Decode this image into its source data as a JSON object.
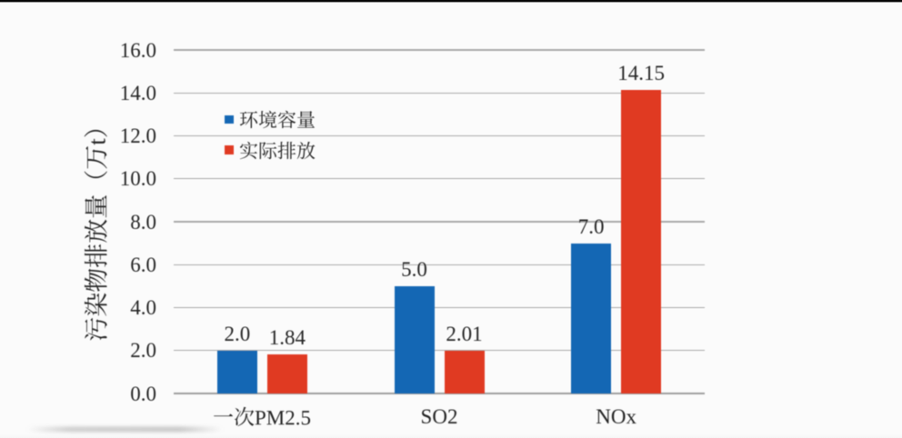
{
  "frame": {
    "background_color": "#fbfbfb",
    "letterbox_bar_color": "#000000"
  },
  "chart_data": {
    "type": "bar",
    "categories": [
      "一次PM2.5",
      "SO2",
      "NOx"
    ],
    "series": [
      {
        "name": "环境容量",
        "color": "#1467b4",
        "values": [
          2.0,
          5.0,
          7.0
        ],
        "data_labels": [
          "2.0",
          "5.0",
          "7.0"
        ]
      },
      {
        "name": "实际排放",
        "color": "#e03a22",
        "values": [
          1.84,
          2.01,
          14.15
        ],
        "data_labels": [
          "1.84",
          "2.01",
          "14.15"
        ]
      }
    ],
    "ylabel": "污染物排放量（万t）",
    "ylim": [
      0,
      16
    ],
    "ytick_interval": 2,
    "yticks": [
      "0.0",
      "2.0",
      "4.0",
      "6.0",
      "8.0",
      "10.0",
      "12.0",
      "14.0",
      "16.0"
    ],
    "grid": true,
    "legend_position": "inside upper-left",
    "gridline_color": "#a9a9a9",
    "axis_line_color": "#9e9e9e",
    "text_color": "#262626"
  }
}
